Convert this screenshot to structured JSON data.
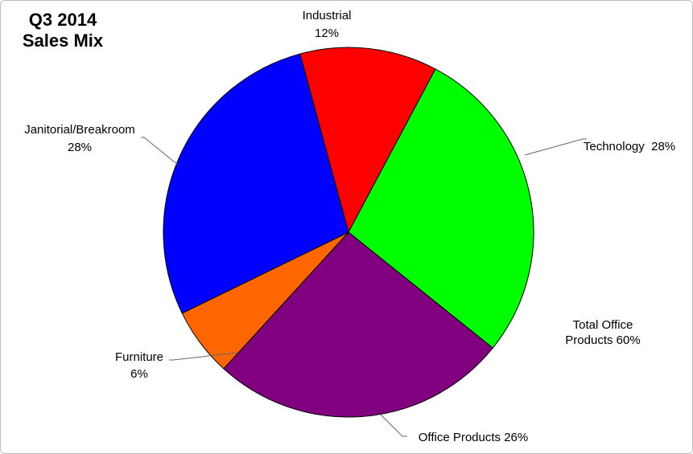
{
  "title_line1": "Q3 2014",
  "title_line2": "Sales Mix",
  "note_line1": "Total Office",
  "note_line2": "Products 60%",
  "chart_data": {
    "type": "pie",
    "title": "Q3 2014 Sales Mix",
    "slices": [
      {
        "name": "Industrial",
        "value": 12,
        "color": "#ff0000",
        "label_lines": [
          "Industrial",
          "12%"
        ]
      },
      {
        "name": "Technology",
        "value": 28,
        "color": "#00ff00",
        "label_lines": [
          "Technology  28%"
        ]
      },
      {
        "name": "Office Products",
        "value": 26,
        "color": "#800080",
        "label_lines": [
          "Office Products 26%"
        ]
      },
      {
        "name": "Furniture",
        "value": 6,
        "color": "#ff6600",
        "label_lines": [
          "Furniture",
          "6%"
        ]
      },
      {
        "name": "Janitorial/Breakroom",
        "value": 28,
        "color": "#0000ff",
        "label_lines": [
          "Janitorial/Breakroom",
          "28%"
        ]
      }
    ],
    "annotations": [
      "Total Office Products 60%"
    ],
    "legend": "none"
  }
}
